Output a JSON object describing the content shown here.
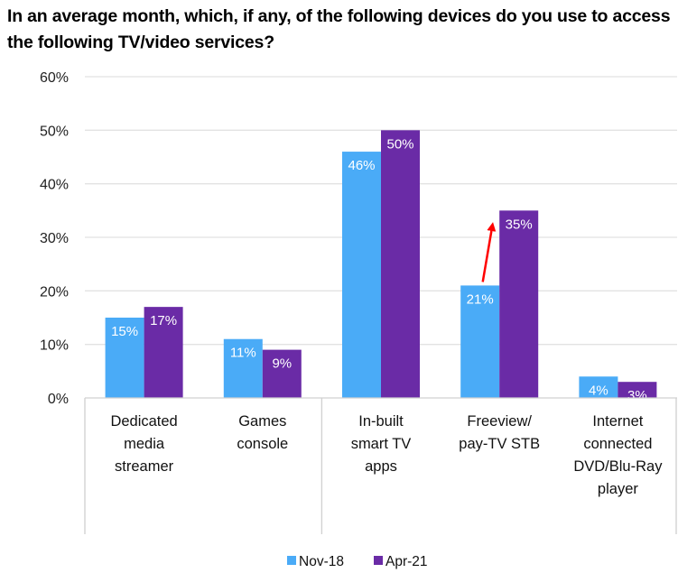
{
  "chart_data": {
    "type": "bar",
    "title": "In an average month, which, if any, of the following devices do you use to access the following TV/video services?",
    "xlabel": "",
    "ylabel": "",
    "ylim": [
      0,
      0.6
    ],
    "yticks": [
      0,
      0.1,
      0.2,
      0.3,
      0.4,
      0.5,
      0.6
    ],
    "ytick_labels": [
      "0%",
      "10%",
      "20%",
      "30%",
      "40%",
      "50%",
      "60%"
    ],
    "grid": true,
    "categories": [
      [
        "Dedicated",
        "media",
        "streamer"
      ],
      [
        "Games",
        "console"
      ],
      [
        "In-built",
        "smart TV",
        "apps"
      ],
      [
        "Freeview/",
        "pay-TV STB"
      ],
      [
        "Internet",
        "connected",
        "DVD/Blu-Ray",
        "player"
      ]
    ],
    "category_group_split_after": 2,
    "series": [
      {
        "name": "Nov-18",
        "color": "#4aabf7",
        "values": [
          0.15,
          0.11,
          0.46,
          0.21,
          0.04
        ],
        "labels": [
          "15%",
          "11%",
          "46%",
          "21%",
          "4%"
        ]
      },
      {
        "name": "Apr-21",
        "color": "#6a2ba6",
        "values": [
          0.17,
          0.09,
          0.5,
          0.35,
          0.03
        ],
        "labels": [
          "17%",
          "9%",
          "50%",
          "35%",
          "3%"
        ]
      }
    ],
    "legend": {
      "position": "bottom",
      "entries": [
        "Nov-18",
        "Apr-21"
      ]
    },
    "annotations": [
      {
        "type": "arrow",
        "color": "#ff0000",
        "from": {
          "category": 3,
          "series": 0,
          "value": 0.21
        },
        "to": {
          "category": 3,
          "series": 1,
          "value": 0.31
        },
        "meaning": "increase from Nov-18 to Apr-21 for Freeview/pay-TV STB"
      }
    ]
  }
}
